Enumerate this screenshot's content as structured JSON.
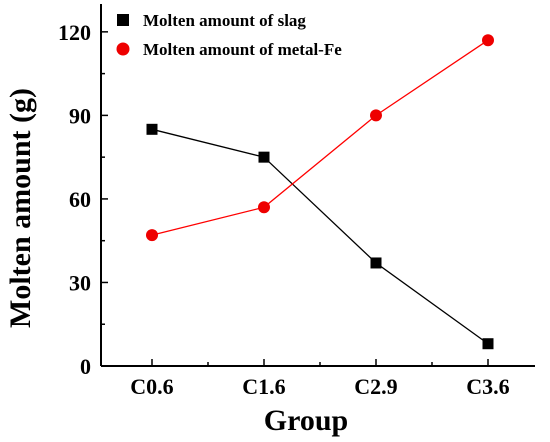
{
  "chart_data": {
    "type": "line",
    "xlabel": "Group",
    "ylabel": "Molten amount (g)",
    "categories": [
      "C0.6",
      "C1.6",
      "C2.9",
      "C3.6"
    ],
    "ylim": [
      0,
      130
    ],
    "yticks": [
      0,
      30,
      60,
      90,
      120
    ],
    "legend_position": "top-left",
    "series": [
      {
        "name": "Molten amount of slag",
        "values": [
          85,
          75,
          37,
          8
        ],
        "color": "#000000",
        "line_color": "#000000",
        "marker": "square"
      },
      {
        "name": "Molten amount of metal-Fe",
        "values": [
          47,
          57,
          90,
          117
        ],
        "color": "#ee0000",
        "line_color": "#ff0000",
        "marker": "circle"
      }
    ]
  }
}
